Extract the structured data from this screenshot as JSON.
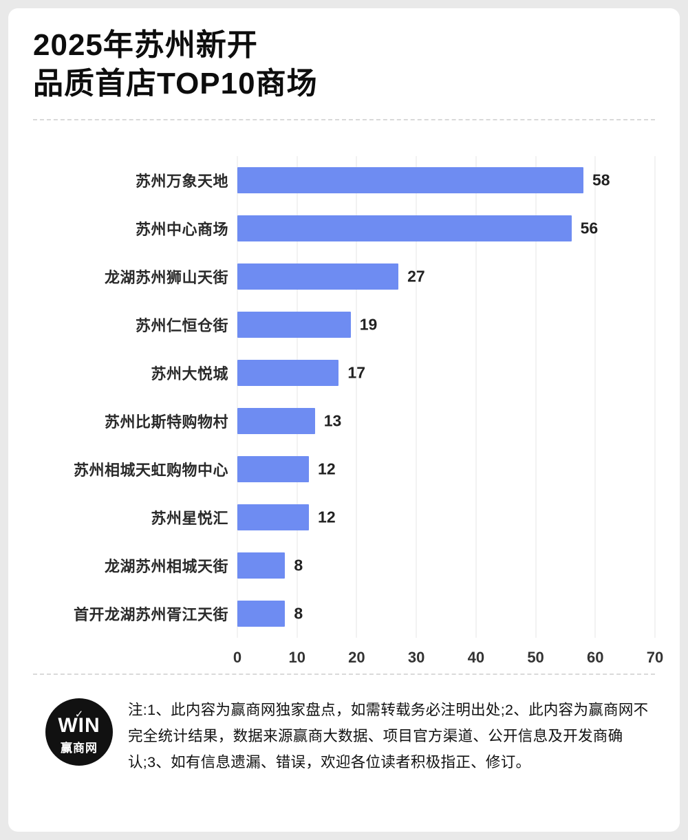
{
  "page": {
    "title_line1": "2025年苏州新开",
    "title_line2": "品质首店TOP10商场"
  },
  "chart_data": {
    "type": "bar",
    "orientation": "horizontal",
    "title": "2025年苏州新开品质首店TOP10商场",
    "categories": [
      "苏州万象天地",
      "苏州中心商场",
      "龙湖苏州狮山天街",
      "苏州仁恒仓街",
      "苏州大悦城",
      "苏州比斯特购物村",
      "苏州相城天虹购物中心",
      "苏州星悦汇",
      "龙湖苏州相城天街",
      "首开龙湖苏州胥江天街"
    ],
    "values": [
      58,
      56,
      27,
      19,
      17,
      13,
      12,
      12,
      8,
      8
    ],
    "xlabel": "",
    "ylabel": "",
    "xlim": [
      0,
      70
    ],
    "xticks": [
      0,
      10,
      20,
      30,
      40,
      50,
      60,
      70
    ],
    "grid": true,
    "legend": false,
    "bar_color": "#6e8cf2"
  },
  "footer": {
    "logo_check": "✓",
    "logo_text": "WIN",
    "logo_subtext": "赢商网",
    "note": "注:1、此内容为赢商网独家盘点，如需转载务必注明出处;2、此内容为赢商网不完全统计结果，数据来源赢商大数据、项目官方渠道、公开信息及开发商确认;3、如有信息遗漏、错误，欢迎各位读者积极指正、修订。"
  }
}
